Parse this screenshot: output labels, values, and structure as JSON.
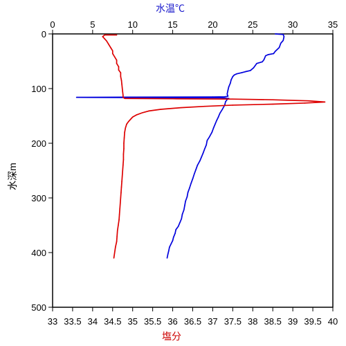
{
  "chart_data": {
    "type": "line",
    "axes": {
      "depth": {
        "label": "水深m",
        "range": [
          0,
          500
        ],
        "inverted": true,
        "ticks": [
          0,
          100,
          200,
          300,
          400,
          500
        ]
      },
      "temperature": {
        "label": "水温℃",
        "position": "top",
        "color": "#1a1acc",
        "range": [
          0,
          35
        ],
        "ticks": [
          0,
          5,
          10,
          15,
          20,
          25,
          30,
          35
        ]
      },
      "salinity": {
        "label": "塩分",
        "position": "bottom",
        "color": "#cc0000",
        "range": [
          33,
          40
        ],
        "ticks": [
          "33",
          "33.5",
          "34",
          "34.5",
          "35",
          "35.5",
          "36",
          "36.5",
          "37",
          "37.5",
          "38",
          "38.5",
          "39",
          "39.5",
          "40"
        ]
      }
    },
    "grid": false,
    "series": [
      {
        "axis": "temperature",
        "color": "#0000dd",
        "points": [
          [
            27.8,
            0
          ],
          [
            28.8,
            1
          ],
          [
            28.9,
            5
          ],
          [
            28.8,
            12
          ],
          [
            28.5,
            17
          ],
          [
            28.3,
            25
          ],
          [
            27.8,
            32
          ],
          [
            27.6,
            36
          ],
          [
            26.9,
            38
          ],
          [
            26.6,
            40
          ],
          [
            26.4,
            47
          ],
          [
            26.2,
            51
          ],
          [
            25.5,
            54
          ],
          [
            25.1,
            62
          ],
          [
            24.7,
            67
          ],
          [
            24.1,
            69
          ],
          [
            23.6,
            71
          ],
          [
            23.0,
            73
          ],
          [
            22.7,
            75
          ],
          [
            22.5,
            78
          ],
          [
            22.3,
            84
          ],
          [
            22.2,
            90
          ],
          [
            22.0,
            97
          ],
          [
            21.9,
            103
          ],
          [
            21.8,
            110
          ],
          [
            21.9,
            114
          ],
          [
            21.5,
            115
          ],
          [
            20.0,
            115.3
          ],
          [
            10.0,
            115.7
          ],
          [
            3.0,
            116
          ],
          [
            10.0,
            116.5
          ],
          [
            21.0,
            117
          ],
          [
            22.0,
            118
          ],
          [
            21.8,
            120
          ],
          [
            21.6,
            124
          ],
          [
            21.5,
            130
          ],
          [
            21.2,
            138
          ],
          [
            20.9,
            145
          ],
          [
            20.7,
            152
          ],
          [
            20.5,
            158
          ],
          [
            20.3,
            165
          ],
          [
            20.1,
            172
          ],
          [
            19.9,
            180
          ],
          [
            19.6,
            188
          ],
          [
            19.3,
            195
          ],
          [
            19.2,
            203
          ],
          [
            19.0,
            210
          ],
          [
            18.8,
            218
          ],
          [
            18.6,
            225
          ],
          [
            18.4,
            232
          ],
          [
            18.1,
            240
          ],
          [
            17.9,
            248
          ],
          [
            17.7,
            256
          ],
          [
            17.5,
            265
          ],
          [
            17.3,
            273
          ],
          [
            17.1,
            282
          ],
          [
            16.9,
            290
          ],
          [
            16.8,
            298
          ],
          [
            16.6,
            306
          ],
          [
            16.5,
            314
          ],
          [
            16.4,
            322
          ],
          [
            16.2,
            330
          ],
          [
            16.1,
            338
          ],
          [
            15.9,
            345
          ],
          [
            15.7,
            352
          ],
          [
            15.4,
            358
          ],
          [
            15.3,
            365
          ],
          [
            15.1,
            372
          ],
          [
            15.0,
            378
          ],
          [
            14.8,
            384
          ],
          [
            14.6,
            390
          ],
          [
            14.5,
            397
          ],
          [
            14.4,
            403
          ],
          [
            14.3,
            410
          ]
        ]
      },
      {
        "axis": "salinity",
        "color": "#dd0000",
        "points": [
          [
            34.6,
            2
          ],
          [
            34.3,
            2
          ],
          [
            34.25,
            5
          ],
          [
            34.3,
            9
          ],
          [
            34.35,
            13
          ],
          [
            34.4,
            19
          ],
          [
            34.45,
            25
          ],
          [
            34.5,
            31
          ],
          [
            34.5,
            36
          ],
          [
            34.55,
            42
          ],
          [
            34.6,
            48
          ],
          [
            34.6,
            54
          ],
          [
            34.65,
            60
          ],
          [
            34.65,
            66
          ],
          [
            34.7,
            71
          ],
          [
            34.7,
            78
          ],
          [
            34.72,
            85
          ],
          [
            34.73,
            92
          ],
          [
            34.74,
            99
          ],
          [
            34.75,
            106
          ],
          [
            34.76,
            112
          ],
          [
            34.76,
            116
          ],
          [
            34.8,
            118
          ],
          [
            36.0,
            118.6
          ],
          [
            37.5,
            119.2
          ],
          [
            38.5,
            120.5
          ],
          [
            39.4,
            122.5
          ],
          [
            39.8,
            124.5
          ],
          [
            39.3,
            126.5
          ],
          [
            38.5,
            128.5
          ],
          [
            37.5,
            130.3
          ],
          [
            36.8,
            132.5
          ],
          [
            36.2,
            135
          ],
          [
            35.7,
            138
          ],
          [
            35.4,
            141
          ],
          [
            35.25,
            144
          ],
          [
            35.1,
            148
          ],
          [
            35.0,
            152
          ],
          [
            34.95,
            156
          ],
          [
            34.9,
            160
          ],
          [
            34.85,
            165
          ],
          [
            34.82,
            172
          ],
          [
            34.8,
            180
          ],
          [
            34.79,
            190
          ],
          [
            34.78,
            200
          ],
          [
            34.78,
            210
          ],
          [
            34.77,
            220
          ],
          [
            34.77,
            230
          ],
          [
            34.76,
            240
          ],
          [
            34.75,
            250
          ],
          [
            34.74,
            260
          ],
          [
            34.73,
            270
          ],
          [
            34.72,
            280
          ],
          [
            34.71,
            290
          ],
          [
            34.7,
            300
          ],
          [
            34.69,
            310
          ],
          [
            34.68,
            320
          ],
          [
            34.67,
            330
          ],
          [
            34.66,
            340
          ],
          [
            34.64,
            350
          ],
          [
            34.62,
            360
          ],
          [
            34.61,
            370
          ],
          [
            34.6,
            380
          ],
          [
            34.57,
            390
          ],
          [
            34.55,
            400
          ],
          [
            34.53,
            410
          ]
        ]
      }
    ]
  }
}
